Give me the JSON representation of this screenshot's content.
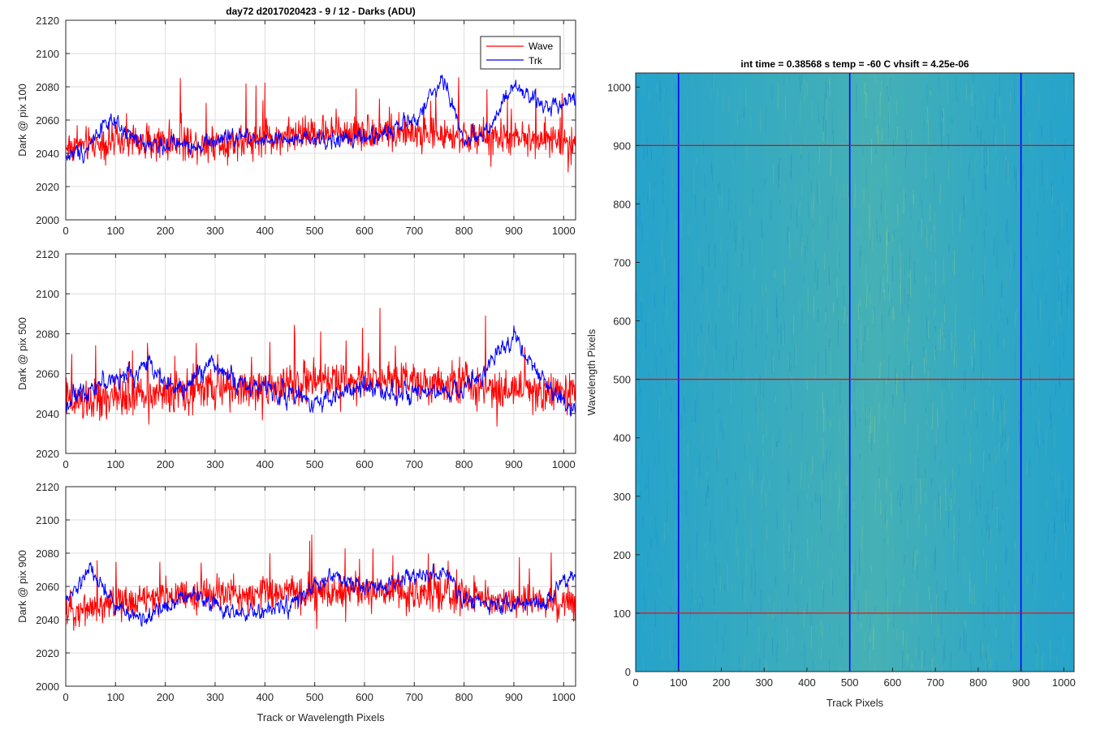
{
  "chart_data": [
    {
      "type": "line",
      "title": "day72 d2017020423 - 9 / 12 - Darks (ADU)",
      "ylabel": "Dark @ pix 100",
      "xlabel": "",
      "xlim": [
        0,
        1024
      ],
      "ylim": [
        2000,
        2120
      ],
      "xticks": [
        0,
        100,
        200,
        300,
        400,
        500,
        600,
        700,
        800,
        900,
        1000
      ],
      "yticks": [
        2000,
        2020,
        2040,
        2060,
        2080,
        2100,
        2120
      ],
      "grid": true,
      "legend": "top-right",
      "series": [
        {
          "name": "Wave",
          "color": "#ff0000",
          "profile_x": [
            0,
            100,
            200,
            300,
            400,
            500,
            600,
            700,
            800,
            900,
            1024
          ],
          "profile_y": [
            2044,
            2047,
            2047,
            2046,
            2049,
            2052,
            2053,
            2052,
            2050,
            2049,
            2047
          ]
        },
        {
          "name": "Trk",
          "color": "#0000ff",
          "profile_x": [
            0,
            40,
            80,
            150,
            250,
            350,
            450,
            550,
            620,
            700,
            760,
            800,
            850,
            900,
            960,
            1024
          ],
          "profile_y": [
            2038,
            2042,
            2060,
            2046,
            2045,
            2050,
            2047,
            2048,
            2050,
            2060,
            2085,
            2047,
            2055,
            2080,
            2068,
            2074
          ]
        }
      ]
    },
    {
      "type": "line",
      "ylabel": "Dark @ pix 500",
      "xlabel": "",
      "xlim": [
        0,
        1024
      ],
      "ylim": [
        2020,
        2120
      ],
      "xticks": [
        0,
        100,
        200,
        300,
        400,
        500,
        600,
        700,
        800,
        900,
        1000
      ],
      "yticks": [
        2020,
        2040,
        2060,
        2080,
        2100,
        2120
      ],
      "grid": true,
      "series": [
        {
          "name": "Wave",
          "color": "#ff0000",
          "profile_x": [
            0,
            100,
            200,
            300,
            400,
            500,
            600,
            700,
            800,
            900,
            1024
          ],
          "profile_y": [
            2045,
            2048,
            2050,
            2052,
            2053,
            2056,
            2058,
            2057,
            2055,
            2052,
            2050
          ]
        },
        {
          "name": "Trk",
          "color": "#0000ff",
          "profile_x": [
            0,
            60,
            120,
            170,
            230,
            290,
            350,
            420,
            500,
            560,
            620,
            700,
            800,
            860,
            900,
            960,
            1024
          ],
          "profile_y": [
            2045,
            2055,
            2058,
            2065,
            2050,
            2066,
            2055,
            2052,
            2046,
            2050,
            2054,
            2048,
            2052,
            2066,
            2080,
            2055,
            2042
          ]
        }
      ]
    },
    {
      "type": "line",
      "ylabel": "Dark @ pix 900",
      "xlabel": "Track or Wavelength Pixels",
      "xlim": [
        0,
        1024
      ],
      "ylim": [
        2000,
        2120
      ],
      "xticks": [
        0,
        100,
        200,
        300,
        400,
        500,
        600,
        700,
        800,
        900,
        1000
      ],
      "yticks": [
        2000,
        2020,
        2040,
        2060,
        2080,
        2100,
        2120
      ],
      "grid": true,
      "series": [
        {
          "name": "Wave",
          "color": "#ff0000",
          "profile_x": [
            0,
            100,
            200,
            300,
            400,
            500,
            600,
            700,
            800,
            900,
            1024
          ],
          "profile_y": [
            2045,
            2050,
            2054,
            2055,
            2056,
            2056,
            2057,
            2056,
            2054,
            2052,
            2050
          ]
        },
        {
          "name": "Trk",
          "color": "#0000ff",
          "profile_x": [
            0,
            50,
            100,
            150,
            250,
            300,
            350,
            450,
            530,
            600,
            700,
            760,
            800,
            860,
            950,
            1024
          ],
          "profile_y": [
            2050,
            2070,
            2048,
            2040,
            2056,
            2050,
            2042,
            2048,
            2066,
            2058,
            2066,
            2068,
            2052,
            2050,
            2048,
            2068
          ]
        }
      ]
    },
    {
      "type": "heatmap",
      "title": "int time = 0.38568 s   temp = -60 C   vhsift = 4.25e-06",
      "xlabel": "Track Pixels",
      "ylabel": "Wavelength Pixels",
      "xlim": [
        0,
        1024
      ],
      "ylim": [
        0,
        1024
      ],
      "xticks": [
        0,
        100,
        200,
        300,
        400,
        500,
        600,
        700,
        800,
        900,
        1000
      ],
      "yticks": [
        0,
        100,
        200,
        300,
        400,
        500,
        600,
        700,
        800,
        900,
        1000
      ],
      "colormap": "parula",
      "base_color": "#1c9fd2",
      "highlight_color": "#7fc98e",
      "markers_vertical_x": [
        100,
        500,
        900
      ],
      "markers_vertical_color": "#0000ff",
      "markers_horizontal_y": [
        100,
        500,
        900
      ],
      "markers_horizontal_color": "#ff0000"
    }
  ]
}
